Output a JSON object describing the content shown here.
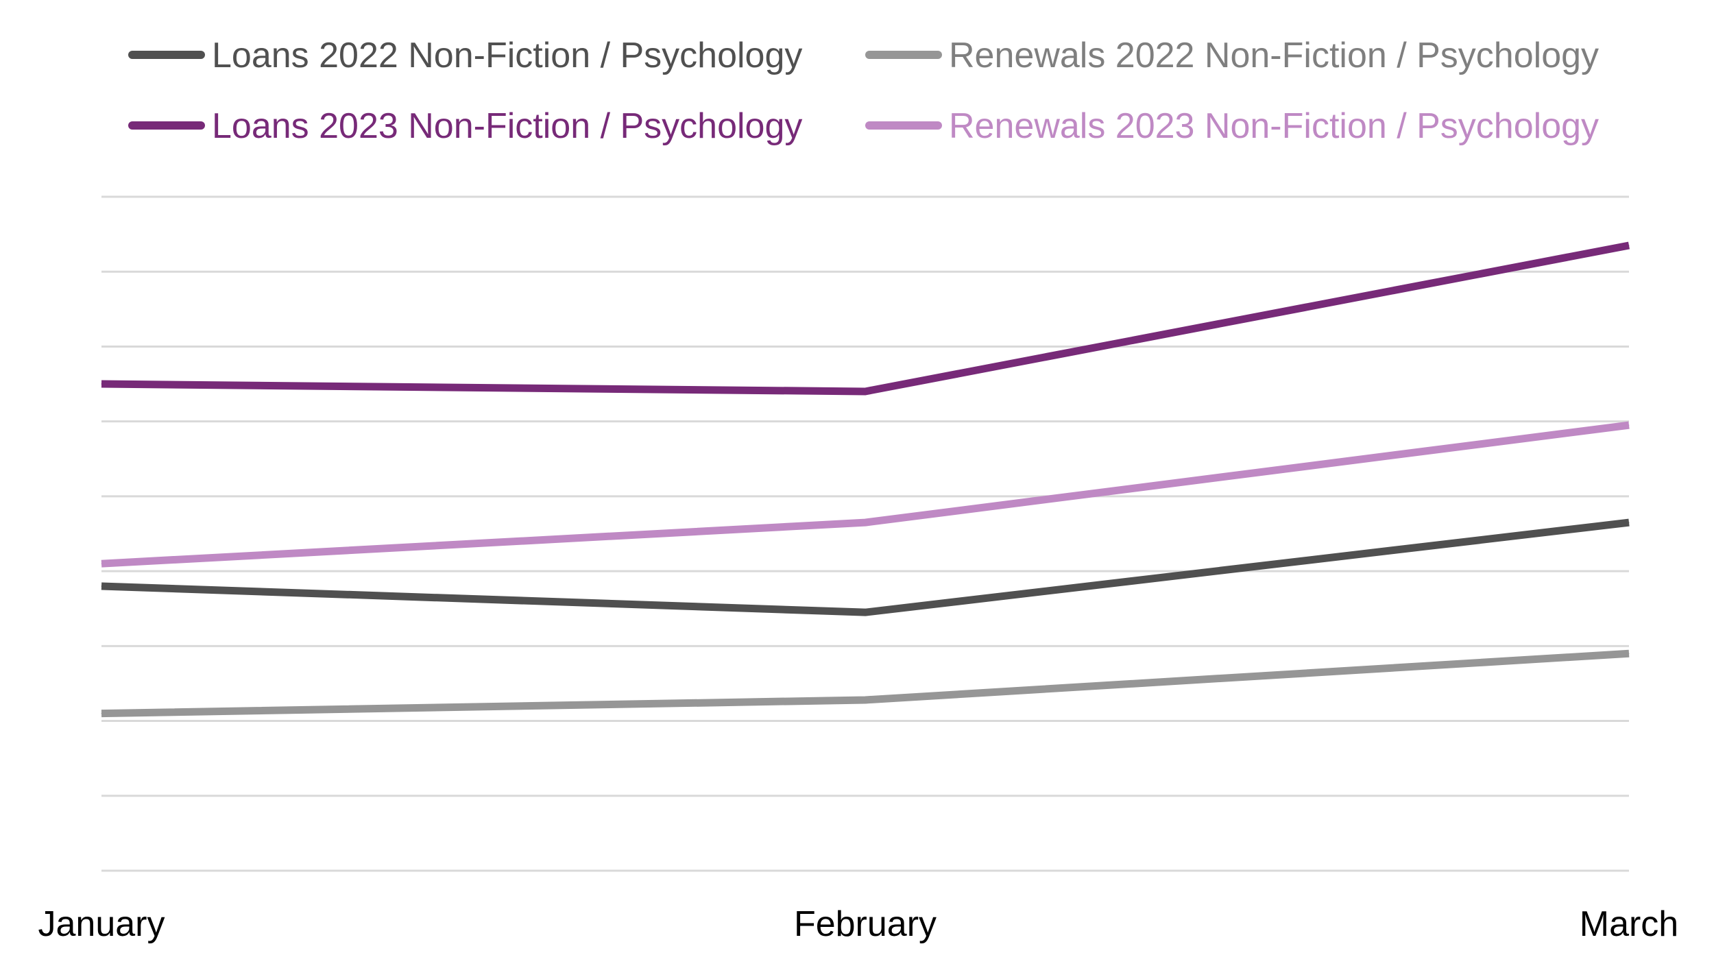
{
  "chart_data": {
    "type": "line",
    "categories": [
      "January",
      "February",
      "March"
    ],
    "ylim": [
      0,
      9
    ],
    "grid": true,
    "legend_position": "top",
    "series": [
      {
        "name": "Loans 2022 Non-Fiction / Psychology",
        "values": [
          3.8,
          3.45,
          4.65
        ],
        "color": "#505050",
        "text_color": "#505050"
      },
      {
        "name": "Renewals 2022 Non-Fiction / Psychology",
        "values": [
          2.1,
          2.28,
          2.9
        ],
        "color": "#969696",
        "text_color": "#7f7f7f"
      },
      {
        "name": "Loans 2023 Non-Fiction / Psychology",
        "values": [
          6.5,
          6.4,
          8.35
        ],
        "color": "#772a78",
        "text_color": "#772a78"
      },
      {
        "name": "Renewals 2023 Non-Fiction / Psychology",
        "values": [
          4.1,
          4.65,
          5.95
        ],
        "color": "#bf89c4",
        "text_color": "#bf89c4"
      }
    ]
  }
}
